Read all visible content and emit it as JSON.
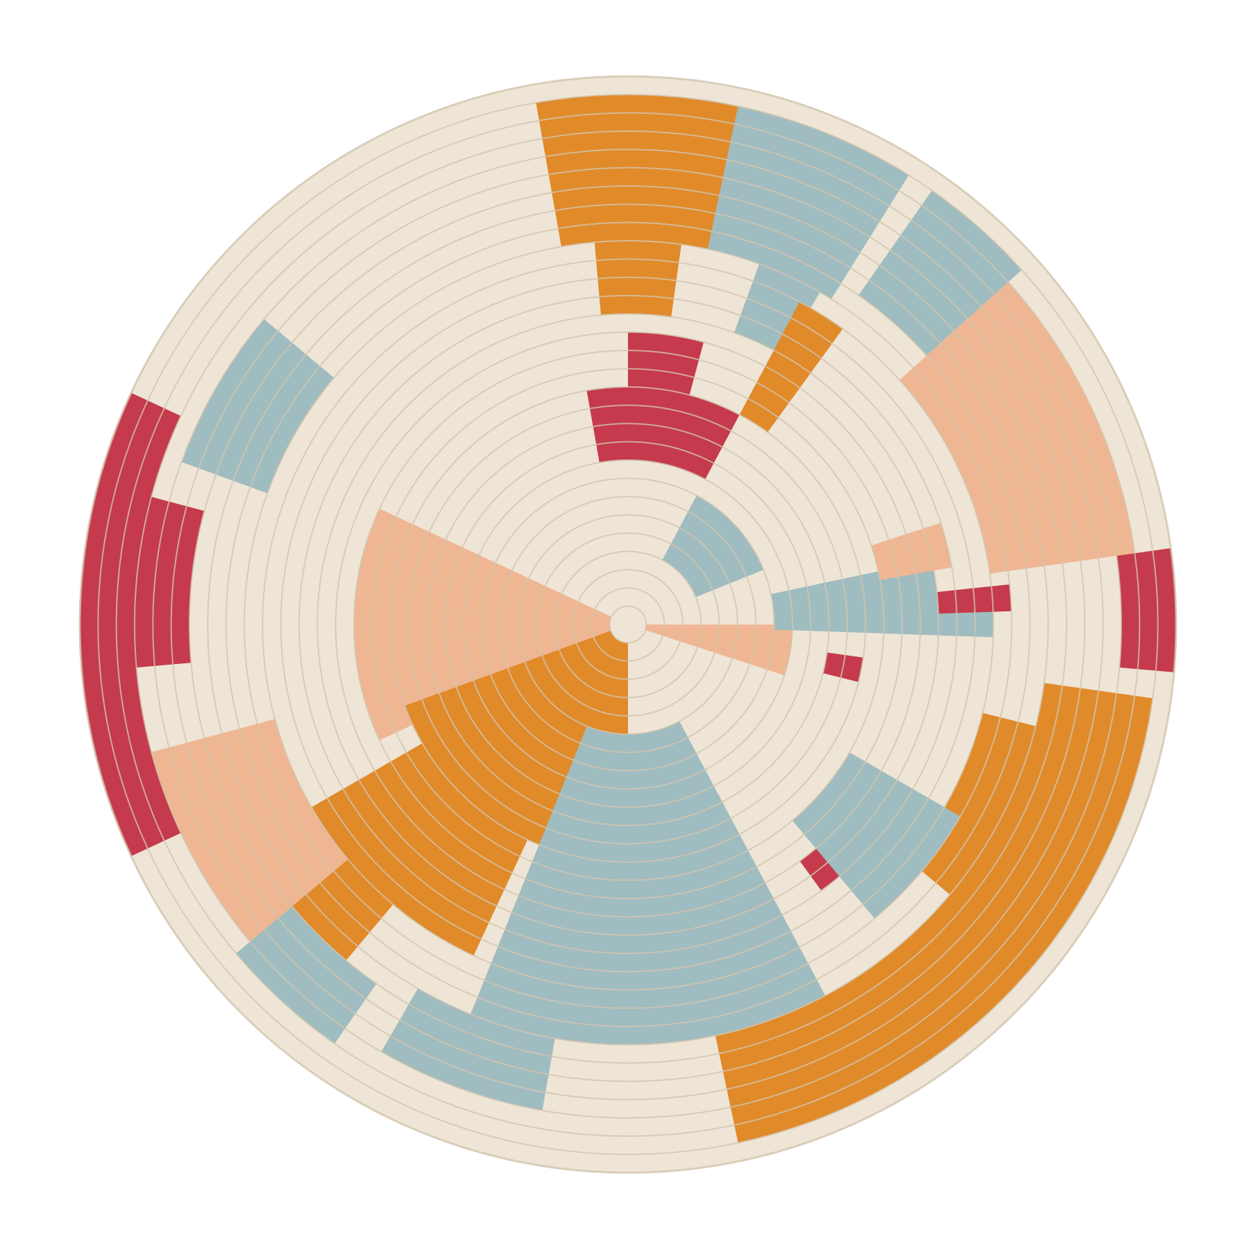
{
  "image": {
    "subject": "woven-basket",
    "colors": {
      "background": "#ffffff",
      "cream": "#eee5d6",
      "coil_line": "#d2c4ae",
      "teal": "#9fbcc0",
      "orange": "#e08a2a",
      "peach": "#efb693",
      "red": "#c53a4d"
    }
  }
}
